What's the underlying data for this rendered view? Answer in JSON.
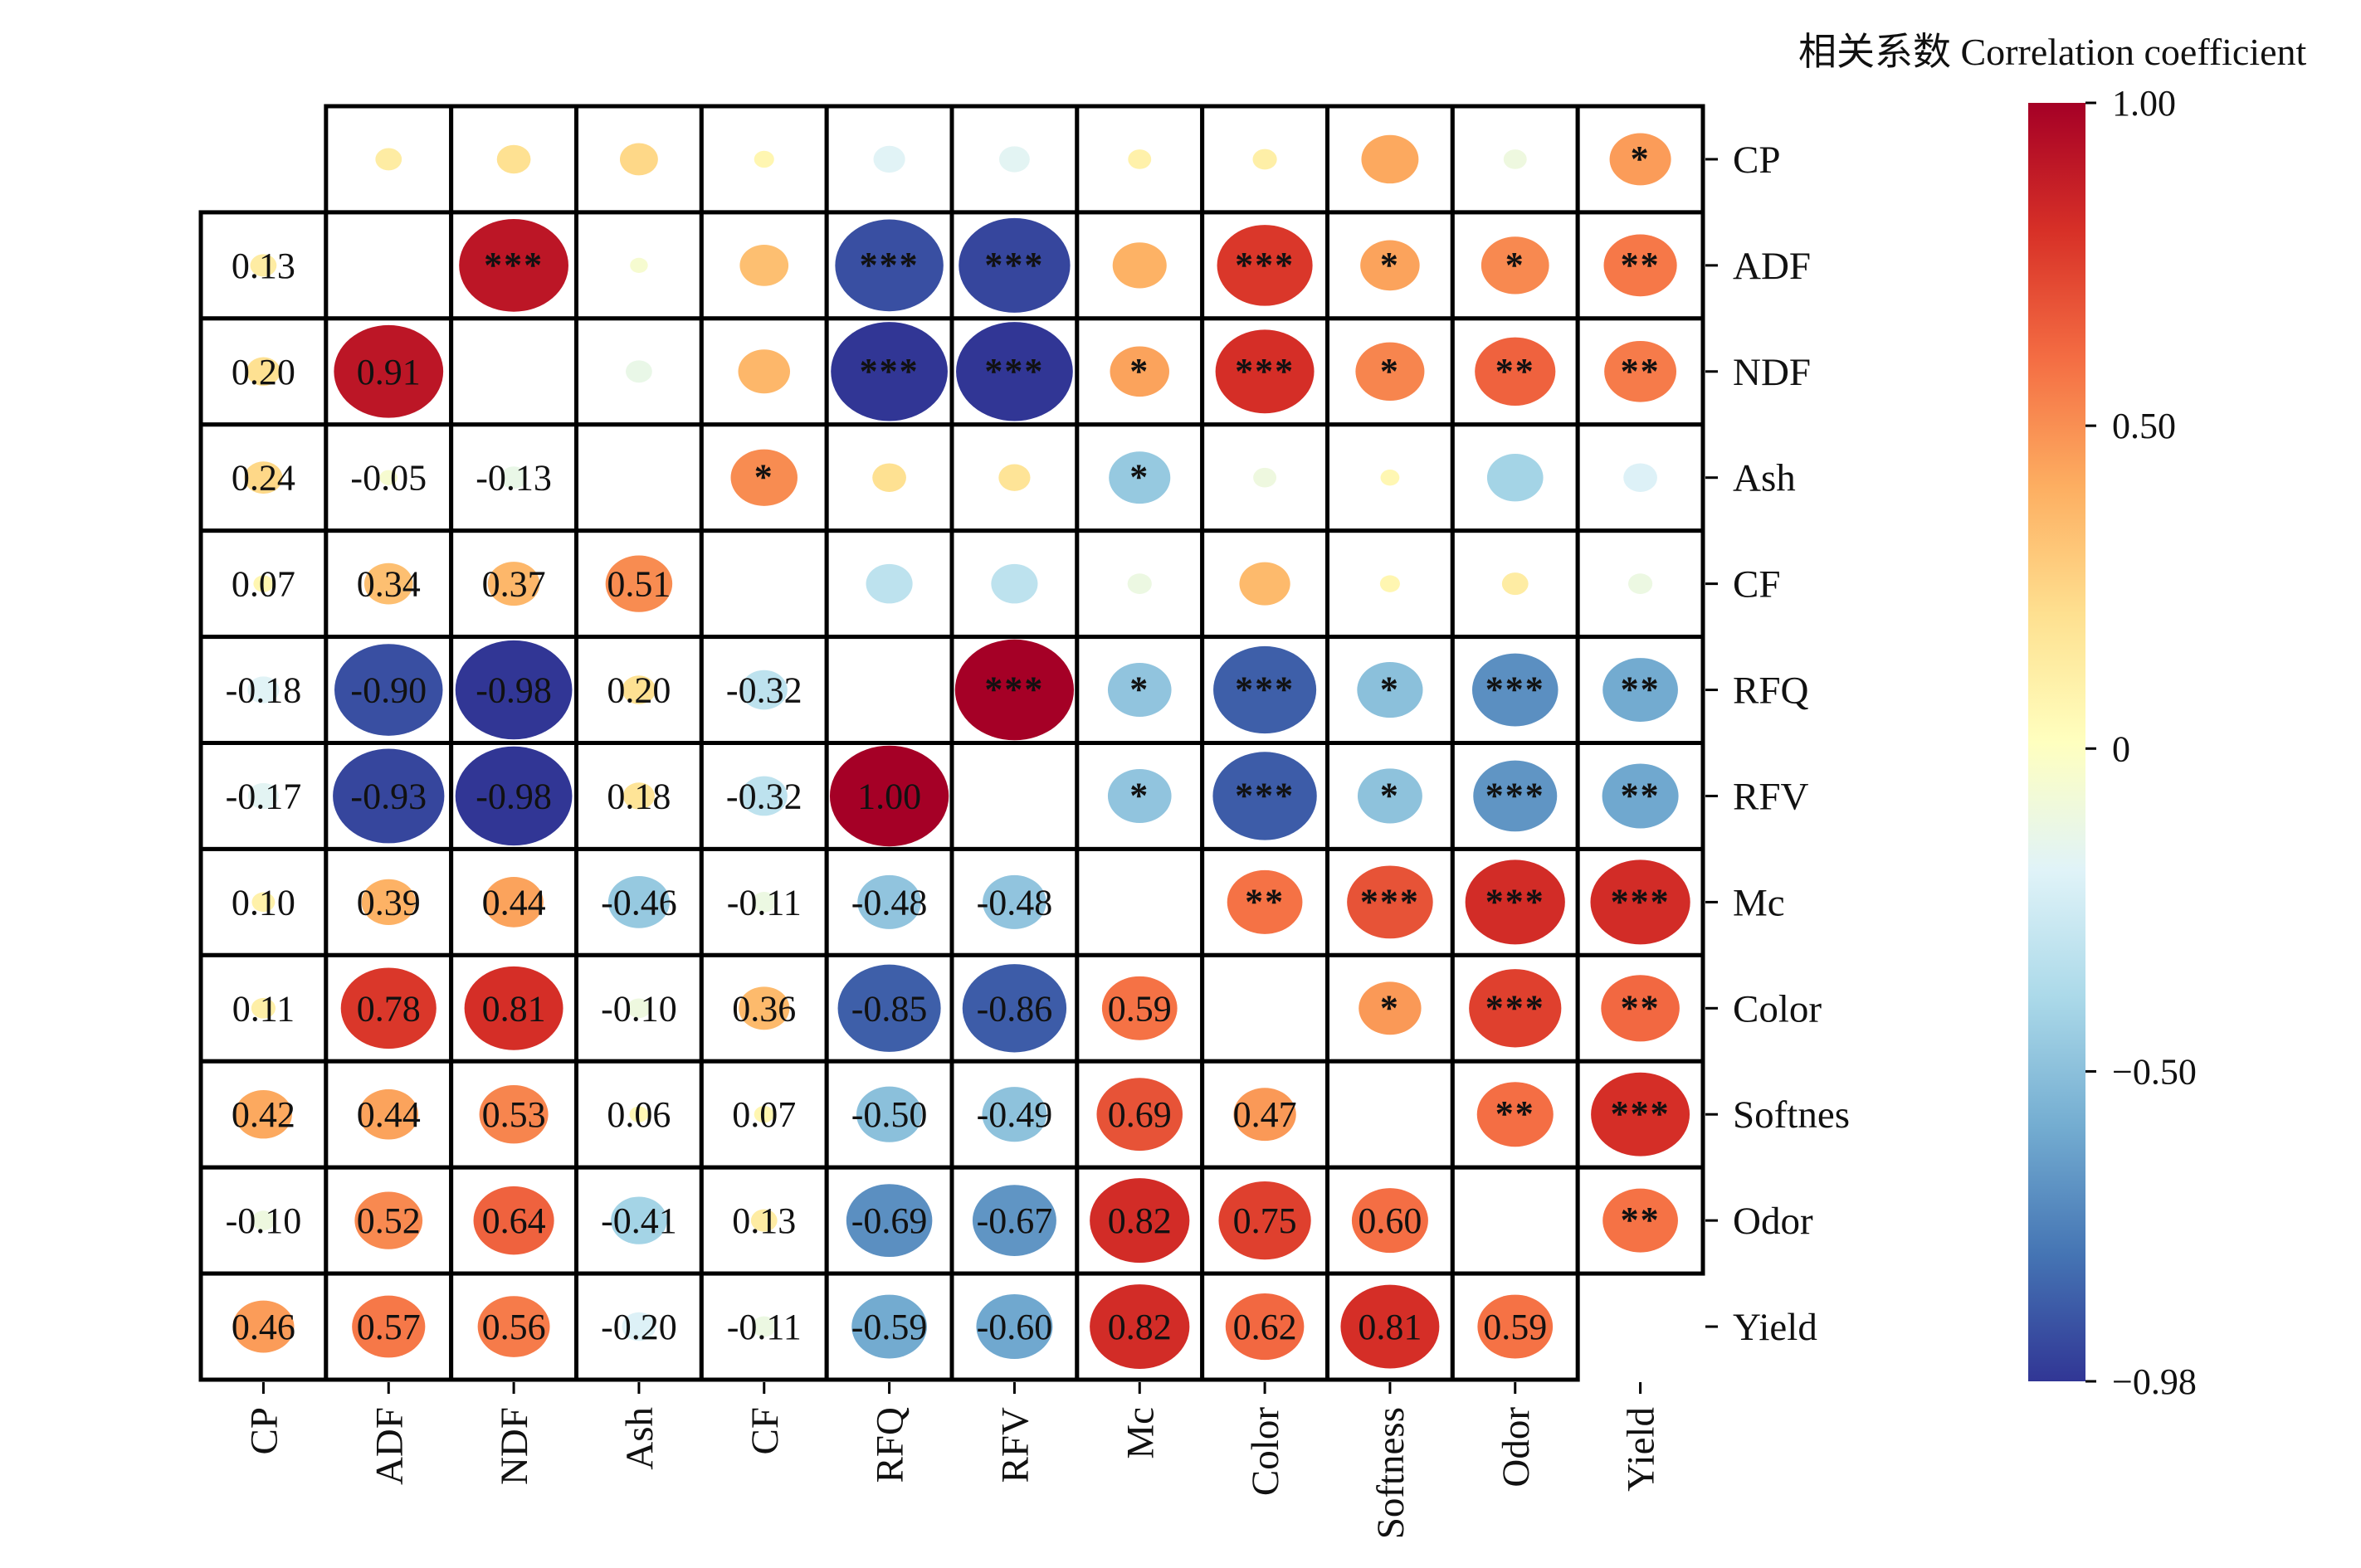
{
  "chart_data": {
    "type": "heatmap",
    "title": "相关系数 Correlation coefficient",
    "variables": [
      "CP",
      "ADF",
      "NDF",
      "Ash",
      "CF",
      "RFQ",
      "RFV",
      "Mc",
      "Color",
      "Softness",
      "Odor",
      "Yield"
    ],
    "right_labels": [
      "CP",
      "ADF",
      "NDF",
      "Ash",
      "CF",
      "RFQ",
      "RFV",
      "Mc",
      "Color",
      "Softnes",
      "Odor",
      "Yield"
    ],
    "lower_values": [
      [],
      [
        0.13
      ],
      [
        0.2,
        0.91
      ],
      [
        0.24,
        -0.05,
        -0.13
      ],
      [
        0.07,
        0.34,
        0.37,
        0.51
      ],
      [
        -0.18,
        -0.9,
        -0.98,
        0.2,
        -0.32
      ],
      [
        -0.17,
        -0.93,
        -0.98,
        0.18,
        -0.32,
        1.0
      ],
      [
        0.1,
        0.39,
        0.44,
        -0.46,
        -0.11,
        -0.48,
        -0.48
      ],
      [
        0.11,
        0.78,
        0.81,
        -0.1,
        0.36,
        -0.85,
        -0.86,
        0.59
      ],
      [
        0.42,
        0.44,
        0.53,
        0.06,
        0.07,
        -0.5,
        -0.49,
        0.69,
        0.47
      ],
      [
        -0.1,
        0.52,
        0.64,
        -0.41,
        0.13,
        -0.69,
        -0.67,
        0.82,
        0.75,
        0.6
      ],
      [
        0.46,
        0.57,
        0.56,
        -0.2,
        -0.11,
        -0.59,
        -0.6,
        0.82,
        0.62,
        0.81,
        0.59
      ]
    ],
    "upper_significance": [
      [
        "",
        "",
        "",
        "",
        "",
        "",
        "",
        "",
        "",
        "",
        "",
        "*"
      ],
      [
        "",
        "",
        "***",
        "",
        "",
        "***",
        "***",
        "",
        "***",
        "*",
        "*",
        "**"
      ],
      [
        "",
        "",
        "",
        "",
        "",
        "***",
        "***",
        "*",
        "***",
        "*",
        "**",
        "**"
      ],
      [
        "",
        "",
        "",
        "",
        "*",
        "",
        "",
        "*",
        "",
        "",
        "",
        ""
      ],
      [
        "",
        "",
        "",
        "",
        "",
        "",
        "",
        "",
        "",
        "",
        "",
        ""
      ],
      [
        "",
        "",
        "",
        "",
        "",
        "",
        "***",
        "*",
        "***",
        "*",
        "***",
        "**"
      ],
      [
        "",
        "",
        "",
        "",
        "",
        "",
        "",
        "*",
        "***",
        "*",
        "***",
        "**"
      ],
      [
        "",
        "",
        "",
        "",
        "",
        "",
        "",
        "",
        "**",
        "***",
        "***",
        "***"
      ],
      [
        "",
        "",
        "",
        "",
        "",
        "",
        "",
        "",
        "",
        "*",
        "***",
        "**"
      ],
      [
        "",
        "",
        "",
        "",
        "",
        "",
        "",
        "",
        "",
        "",
        "**",
        "***"
      ],
      [
        "",
        "",
        "",
        "",
        "",
        "",
        "",
        "",
        "",
        "",
        "",
        "**"
      ],
      [
        "",
        "",
        "",
        "",
        "",
        "",
        "",
        "",
        "",
        "",
        "",
        ""
      ]
    ],
    "colorbar": {
      "range": [
        -0.98,
        1.0
      ],
      "ticks": [
        1.0,
        0.5,
        0,
        -0.5,
        -0.98
      ],
      "tick_labels": [
        "1.00",
        "0.50",
        "0",
        "−0.50",
        "−0.98"
      ],
      "colormap": [
        "#313695",
        "#4575b4",
        "#74add1",
        "#abd9e9",
        "#e0f3f8",
        "#ffffbf",
        "#fee090",
        "#fdae61",
        "#f46d43",
        "#d73027",
        "#a50026"
      ]
    }
  }
}
